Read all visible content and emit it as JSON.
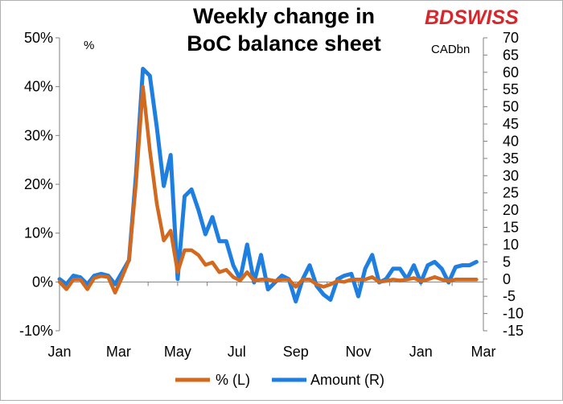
{
  "chart_data": {
    "type": "line",
    "title_lines": [
      "Weekly change in",
      "BoC balance sheet"
    ],
    "brand": {
      "bd": "BD",
      "swiss": "SWISS",
      "color": "#d7262c"
    },
    "left_unit": "%",
    "right_unit": "CADbn",
    "y_left": {
      "min": -10,
      "max": 50,
      "ticks": [
        "-10%",
        "0%",
        "10%",
        "20%",
        "30%",
        "40%",
        "50%"
      ],
      "tick_values": [
        -10,
        0,
        10,
        20,
        30,
        40,
        50
      ]
    },
    "y_right": {
      "min": -15,
      "max": 70,
      "tick_values": [
        -15,
        -10,
        -5,
        0,
        5,
        10,
        15,
        20,
        25,
        30,
        35,
        40,
        45,
        50,
        55,
        60,
        65,
        70
      ]
    },
    "x_axis": {
      "min": 0,
      "max": 61,
      "ticks": [
        "Jan",
        "Mar",
        "May",
        "Jul",
        "Sep",
        "Nov",
        "Jan",
        "Mar"
      ],
      "tick_positions": [
        0,
        8.5,
        17,
        25.5,
        34,
        43,
        52,
        61
      ]
    },
    "series": [
      {
        "name": "% (L)",
        "axis": "left",
        "color": "#d2691e",
        "x": [
          0,
          1,
          2,
          3,
          4,
          5,
          6,
          7,
          8,
          9,
          10,
          11,
          12,
          13,
          14,
          15,
          16,
          17,
          18,
          19,
          20,
          21,
          22,
          23,
          24,
          25,
          26,
          27,
          28,
          29,
          30,
          31,
          32,
          33,
          34,
          35,
          36,
          37,
          38,
          39,
          40,
          41,
          42,
          43,
          44,
          45,
          46,
          47,
          48,
          49,
          50,
          51,
          52,
          53,
          54,
          55,
          56,
          57,
          58,
          59,
          60
        ],
        "values": [
          0,
          -1.5,
          0.5,
          0.5,
          -1.5,
          0.8,
          1.2,
          1,
          -2.2,
          1,
          4.5,
          20,
          40,
          27,
          16,
          8.5,
          10.5,
          2,
          6.5,
          6.5,
          5.5,
          3.5,
          4,
          2,
          2.5,
          1,
          0.3,
          2,
          0.3,
          0.5,
          0.5,
          0.2,
          0.5,
          0.5,
          -1,
          0.5,
          0.5,
          -0.5,
          -1,
          -0.5,
          0.2,
          0,
          0.5,
          0.5,
          0.5,
          1,
          0,
          0.2,
          0.5,
          0.3,
          0.5,
          0.8,
          0.2,
          0.5,
          1,
          0.5,
          0.2,
          0.5,
          0.5,
          0.5,
          0.5
        ]
      },
      {
        "name": "Amount (R)",
        "axis": "right",
        "color": "#1e7fe0",
        "x": [
          0,
          1,
          2,
          3,
          4,
          5,
          6,
          7,
          8,
          9,
          10,
          11,
          12,
          13,
          14,
          15,
          16,
          17,
          17.5,
          18,
          19,
          20,
          21,
          22,
          23,
          24,
          25,
          26,
          27,
          28,
          29,
          30,
          31,
          32,
          33,
          34,
          35,
          36,
          37,
          38,
          39,
          40,
          41,
          42,
          43,
          44,
          45,
          46,
          47,
          48,
          49,
          50,
          51,
          52,
          53,
          54,
          55,
          56,
          57,
          58,
          59,
          60
        ],
        "values": [
          0,
          -1.5,
          1,
          0.5,
          -1.5,
          1,
          1.5,
          1,
          -1.5,
          2,
          5.5,
          30,
          61,
          59,
          44,
          27,
          36,
          0,
          12,
          24,
          26,
          20,
          13,
          18,
          11,
          11,
          4,
          0,
          10,
          -1,
          7,
          -3,
          -1,
          1,
          0,
          -6.5,
          0,
          4,
          -2,
          -4.5,
          -6,
          0,
          1,
          1.5,
          -5,
          3,
          7,
          -1,
          0,
          3,
          3,
          0,
          4,
          -1,
          4,
          5,
          3,
          -1,
          3.5,
          4,
          4,
          5
        ]
      }
    ]
  }
}
